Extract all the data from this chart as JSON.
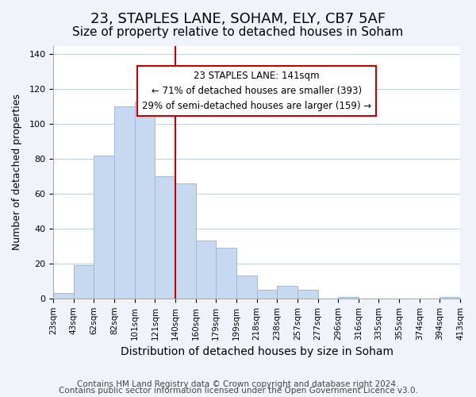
{
  "title1": "23, STAPLES LANE, SOHAM, ELY, CB7 5AF",
  "title2": "Size of property relative to detached houses in Soham",
  "xlabel": "Distribution of detached houses by size in Soham",
  "ylabel": "Number of detached properties",
  "bar_labels": [
    "23sqm",
    "43sqm",
    "62sqm",
    "82sqm",
    "101sqm",
    "121sqm",
    "140sqm",
    "160sqm",
    "179sqm",
    "199sqm",
    "218sqm",
    "238sqm",
    "257sqm",
    "277sqm",
    "296sqm",
    "316sqm",
    "335sqm",
    "355sqm",
    "374sqm",
    "394sqm",
    "413sqm"
  ],
  "bar_values": [
    3,
    19,
    82,
    110,
    113,
    70,
    66,
    33,
    29,
    13,
    5,
    7,
    5,
    0,
    1,
    0,
    0,
    0,
    0,
    1
  ],
  "bar_color": "#c6d9f0",
  "bar_edge_color": "#a0b8d8",
  "property_value": 141,
  "property_label": "23 STAPLES LANE: 141sqm",
  "annotation_line1": "← 71% of detached houses are smaller (393)",
  "annotation_line2": "29% of semi-detached houses are larger (159) →",
  "vline_x_index": 6,
  "vline_color": "#cc0000",
  "annotation_box_edge_color": "#cc0000",
  "ylim": [
    0,
    145
  ],
  "yticks": [
    0,
    20,
    40,
    60,
    80,
    100,
    120,
    140
  ],
  "footer1": "Contains HM Land Registry data © Crown copyright and database right 2024.",
  "footer2": "Contains public sector information licensed under the Open Government Licence v3.0.",
  "bg_color": "#f0f4fa",
  "plot_bg_color": "#ffffff",
  "title1_fontsize": 13,
  "title2_fontsize": 11,
  "xlabel_fontsize": 10,
  "ylabel_fontsize": 9,
  "footer_fontsize": 7.5
}
